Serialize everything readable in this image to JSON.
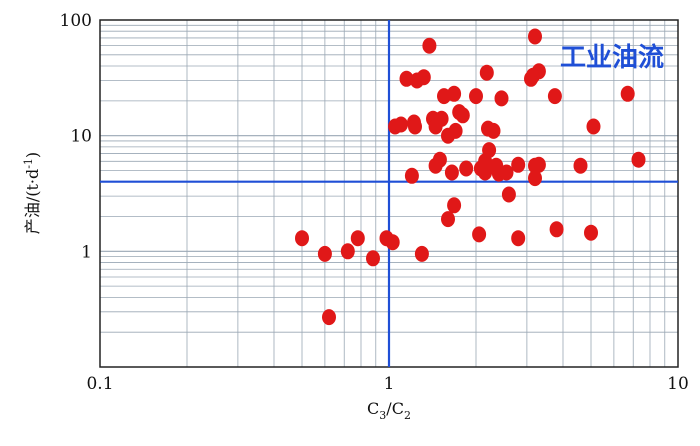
{
  "chart_data": {
    "type": "scatter",
    "x_scale": "log",
    "y_scale": "log",
    "xlim": [
      0.1,
      10
    ],
    "ylim": [
      0.1,
      100
    ],
    "grid": true,
    "xlabel": "C3/C2",
    "ylabel": "产油/(t·d⁻¹)",
    "x_ticks": [
      "0.1",
      "1",
      "10"
    ],
    "y_ticks": [
      "1",
      "10",
      "100"
    ],
    "thresholds": {
      "x": 1,
      "y": 4
    },
    "annotation": "工业油流",
    "colors": {
      "points": "#e01818",
      "threshold_lines": "#1f4fd6",
      "grid": "#9aa7b4",
      "annotation": "#1f4fd6"
    },
    "series": [
      {
        "points": [
          [
            0.5,
            1.3
          ],
          [
            0.6,
            0.95
          ],
          [
            0.62,
            0.27
          ],
          [
            0.72,
            1.0
          ],
          [
            0.78,
            1.3
          ],
          [
            0.88,
            0.87
          ],
          [
            0.98,
            1.3
          ],
          [
            1.03,
            1.2
          ],
          [
            1.3,
            0.95
          ],
          [
            1.05,
            12
          ],
          [
            1.1,
            12.5
          ],
          [
            1.15,
            31
          ],
          [
            1.2,
            4.5
          ],
          [
            1.22,
            13
          ],
          [
            1.23,
            12
          ],
          [
            1.25,
            30
          ],
          [
            1.32,
            32
          ],
          [
            1.38,
            60
          ],
          [
            1.42,
            14
          ],
          [
            1.45,
            5.5
          ],
          [
            1.45,
            12
          ],
          [
            1.5,
            6.2
          ],
          [
            1.52,
            14
          ],
          [
            1.55,
            22
          ],
          [
            1.6,
            10
          ],
          [
            1.6,
            1.9
          ],
          [
            1.65,
            4.8
          ],
          [
            1.68,
            23
          ],
          [
            1.68,
            2.5
          ],
          [
            1.7,
            11
          ],
          [
            1.75,
            16
          ],
          [
            1.8,
            15
          ],
          [
            1.85,
            5.2
          ],
          [
            2.0,
            22
          ],
          [
            2.05,
            1.4
          ],
          [
            2.08,
            5.2
          ],
          [
            2.15,
            4.8
          ],
          [
            2.15,
            6.0
          ],
          [
            2.18,
            35
          ],
          [
            2.2,
            11.5
          ],
          [
            2.22,
            7.5
          ],
          [
            2.3,
            11
          ],
          [
            2.35,
            5.5
          ],
          [
            2.4,
            4.7
          ],
          [
            2.45,
            21
          ],
          [
            2.55,
            4.8
          ],
          [
            2.6,
            3.1
          ],
          [
            2.8,
            1.3
          ],
          [
            2.8,
            5.6
          ],
          [
            3.1,
            31
          ],
          [
            3.15,
            33
          ],
          [
            3.2,
            5.5
          ],
          [
            3.2,
            4.3
          ],
          [
            3.2,
            72
          ],
          [
            3.3,
            36
          ],
          [
            3.3,
            5.6
          ],
          [
            3.75,
            22
          ],
          [
            3.8,
            1.55
          ],
          [
            4.6,
            5.5
          ],
          [
            5.0,
            1.45
          ],
          [
            5.1,
            12
          ],
          [
            6.7,
            23
          ],
          [
            7.3,
            6.2
          ]
        ]
      }
    ]
  }
}
